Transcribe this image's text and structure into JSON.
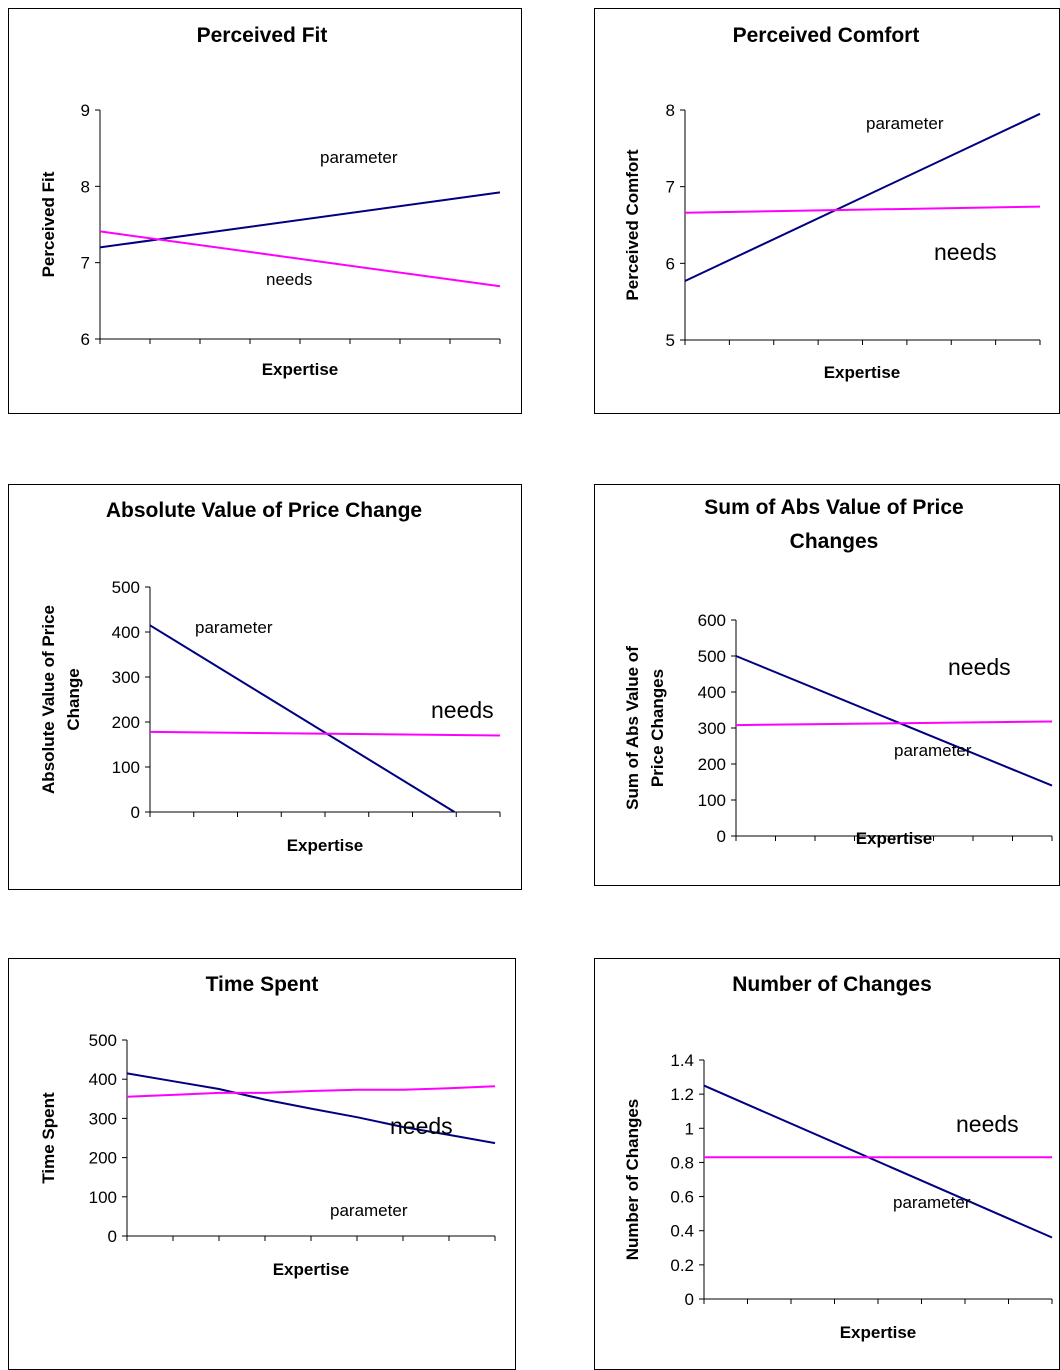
{
  "colors": {
    "parameter": "#000080",
    "needs": "#FF00FF"
  },
  "chart_data": [
    {
      "type": "line",
      "title": [
        "Perceived Fit"
      ],
      "ylabel": [
        "Perceived Fit"
      ],
      "xlabel": "Expertise",
      "ylim": [
        6,
        9
      ],
      "yticks": [
        "6",
        "7",
        "8",
        "9"
      ],
      "x_ticks": 9,
      "series": [
        {
          "name": "parameter",
          "values": [
            7.2,
            7.92
          ]
        },
        {
          "name": "needs",
          "values": [
            7.41,
            6.69
          ]
        }
      ],
      "annotations": [
        {
          "text": "parameter",
          "size": "small"
        },
        {
          "text": "needs",
          "size": "small"
        }
      ]
    },
    {
      "type": "line",
      "title": [
        "Perceived Comfort"
      ],
      "ylabel": [
        "Perceived Comfort"
      ],
      "xlabel": "Expertise",
      "ylim": [
        5,
        8
      ],
      "yticks": [
        "5",
        "6",
        "7",
        "8"
      ],
      "x_ticks": 9,
      "series": [
        {
          "name": "parameter",
          "values": [
            5.77,
            7.95
          ]
        },
        {
          "name": "needs",
          "values": [
            6.66,
            6.74
          ]
        }
      ],
      "annotations": [
        {
          "text": "parameter",
          "size": "small"
        },
        {
          "text": "needs",
          "size": "big"
        }
      ]
    },
    {
      "type": "line",
      "title": [
        "Absolute Value of Price Change"
      ],
      "ylabel": [
        "Absolute Value of Price",
        "Change"
      ],
      "xlabel": "Expertise",
      "ylim": [
        0,
        500
      ],
      "yticks": [
        "0",
        "100",
        "200",
        "300",
        "400",
        "500"
      ],
      "x_ticks": 9,
      "series": [
        {
          "name": "parameter",
          "values": [
            415,
            0
          ],
          "x_end_fraction": 0.87
        },
        {
          "name": "needs",
          "values": [
            178,
            170
          ]
        }
      ],
      "annotations": [
        {
          "text": "parameter",
          "size": "small"
        },
        {
          "text": "needs",
          "size": "big"
        }
      ]
    },
    {
      "type": "line",
      "title": [
        "Sum of Abs Value of Price",
        "Changes"
      ],
      "ylabel": [
        "Sum of Abs Value of",
        "Price Changes"
      ],
      "xlabel": "Expertise",
      "ylim": [
        0,
        600
      ],
      "yticks": [
        "0",
        "100",
        "200",
        "300",
        "400",
        "500",
        "600"
      ],
      "x_ticks": 9,
      "series": [
        {
          "name": "parameter",
          "values": [
            500,
            140
          ]
        },
        {
          "name": "needs",
          "values": [
            308,
            318
          ]
        }
      ],
      "annotations": [
        {
          "text": "needs",
          "size": "big"
        },
        {
          "text": "parameter",
          "size": "small"
        }
      ]
    },
    {
      "type": "line",
      "title": [
        "Time Spent"
      ],
      "ylabel": [
        "Time Spent"
      ],
      "xlabel": "Expertise",
      "ylim": [
        0,
        500
      ],
      "yticks": [
        "0",
        "100",
        "200",
        "300",
        "400",
        "500"
      ],
      "x_ticks": 9,
      "series": [
        {
          "name": "parameter",
          "values": [
            415,
            395,
            375,
            348,
            325,
            303,
            278,
            258,
            237
          ]
        },
        {
          "name": "needs",
          "values": [
            355,
            360,
            365,
            365,
            370,
            373,
            373,
            377,
            382
          ]
        }
      ],
      "annotations": [
        {
          "text": "needs",
          "size": "big"
        },
        {
          "text": "parameter",
          "size": "small"
        }
      ]
    },
    {
      "type": "line",
      "title": [
        "Number of Changes"
      ],
      "ylabel": [
        "Number of Changes"
      ],
      "xlabel": "Expertise",
      "ylim": [
        0,
        1.4
      ],
      "yticks": [
        "0",
        "0.2",
        "0.4",
        "0.6",
        "0.8",
        "1",
        "1.2",
        "1.4"
      ],
      "x_ticks": 9,
      "series": [
        {
          "name": "parameter",
          "values": [
            1.25,
            0.36
          ]
        },
        {
          "name": "needs",
          "values": [
            0.83,
            0.83
          ]
        }
      ],
      "annotations": [
        {
          "text": "needs",
          "size": "big"
        },
        {
          "text": "parameter",
          "size": "small"
        }
      ]
    }
  ]
}
